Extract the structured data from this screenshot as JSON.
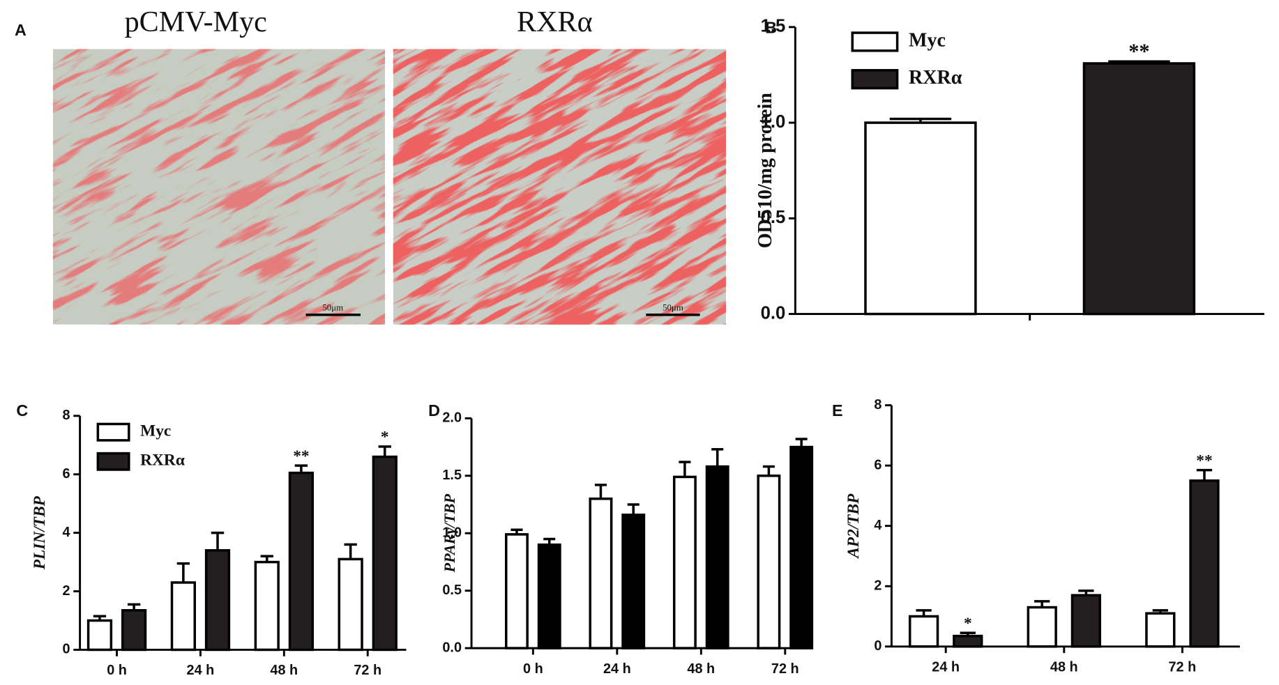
{
  "panel_a": {
    "label": "A",
    "images": [
      {
        "title": "pCMV-Myc",
        "scale_bar": "50μm"
      },
      {
        "title": "RXRα",
        "scale_bar": "50μm"
      }
    ]
  },
  "chart_data": [
    {
      "type": "bar",
      "panel": "B",
      "ylabel": "OD510/mg protein",
      "categories": [
        null
      ],
      "series": [
        {
          "name": "Myc",
          "color": "#ffffff",
          "values": [
            1.0
          ],
          "errors": [
            0.02
          ]
        },
        {
          "name": "RXRα",
          "color": "#231f20",
          "values": [
            1.31
          ],
          "errors": [
            0.01
          ],
          "significance": [
            "**"
          ]
        }
      ],
      "ylim": [
        0,
        1.5
      ],
      "yticks": [
        {
          "value": 0,
          "label": "0.0"
        },
        {
          "value": 0.5,
          "label": "0.5"
        },
        {
          "value": 1,
          "label": "1.0"
        },
        {
          "value": 1.5,
          "label": "1.5"
        }
      ],
      "legend": true
    },
    {
      "type": "bar",
      "panel": "C",
      "ylabel": "PLIN/TBP",
      "categories": [
        "0 h",
        "24 h",
        "48 h",
        "72 h"
      ],
      "series": [
        {
          "name": "Myc",
          "color": "#ffffff",
          "values": [
            1.0,
            2.3,
            3.0,
            3.1
          ],
          "errors": [
            0.15,
            0.65,
            0.2,
            0.5
          ]
        },
        {
          "name": "RXRα",
          "color": "#231f20",
          "values": [
            1.35,
            3.4,
            6.05,
            6.6
          ],
          "errors": [
            0.2,
            0.6,
            0.25,
            0.35
          ],
          "significance": [
            null,
            null,
            "**",
            "*"
          ]
        }
      ],
      "ylim": [
        0,
        8
      ],
      "yticks": [
        0,
        2,
        4,
        6,
        8
      ],
      "legend": true
    },
    {
      "type": "bar",
      "panel": "D",
      "ylabel": "PPARγ/TBP",
      "categories": [
        "0 h",
        "24 h",
        "48 h",
        "72 h"
      ],
      "series": [
        {
          "color": "#ffffff",
          "values": [
            0.99,
            1.3,
            1.49,
            1.5
          ],
          "errors": [
            0.04,
            0.12,
            0.13,
            0.08
          ]
        },
        {
          "color": "#000000",
          "values": [
            0.9,
            1.16,
            1.58,
            1.75
          ],
          "errors": [
            0.05,
            0.09,
            0.15,
            0.07
          ]
        }
      ],
      "ylim": [
        0,
        2
      ],
      "yticks": [
        {
          "value": 0,
          "label": "0.0"
        },
        {
          "value": 0.5,
          "label": "0.5"
        },
        {
          "value": 1,
          "label": "1.0"
        },
        {
          "value": 1.5,
          "label": "1.5"
        },
        {
          "value": 2,
          "label": "2.0"
        }
      ],
      "legend": false
    },
    {
      "type": "bar",
      "panel": "E",
      "ylabel": "AP2/TBP",
      "categories": [
        "24 h",
        "48 h",
        "72 h"
      ],
      "series": [
        {
          "color": "#ffffff",
          "values": [
            1.0,
            1.3,
            1.1
          ],
          "errors": [
            0.2,
            0.2,
            0.1
          ]
        },
        {
          "color": "#231f20",
          "values": [
            0.35,
            1.7,
            5.5
          ],
          "errors": [
            0.1,
            0.15,
            0.35
          ],
          "significance": [
            "*",
            null,
            "**"
          ]
        }
      ],
      "ylim": [
        0,
        8
      ],
      "yticks": [
        0,
        2,
        4,
        6,
        8
      ],
      "legend": false
    }
  ]
}
